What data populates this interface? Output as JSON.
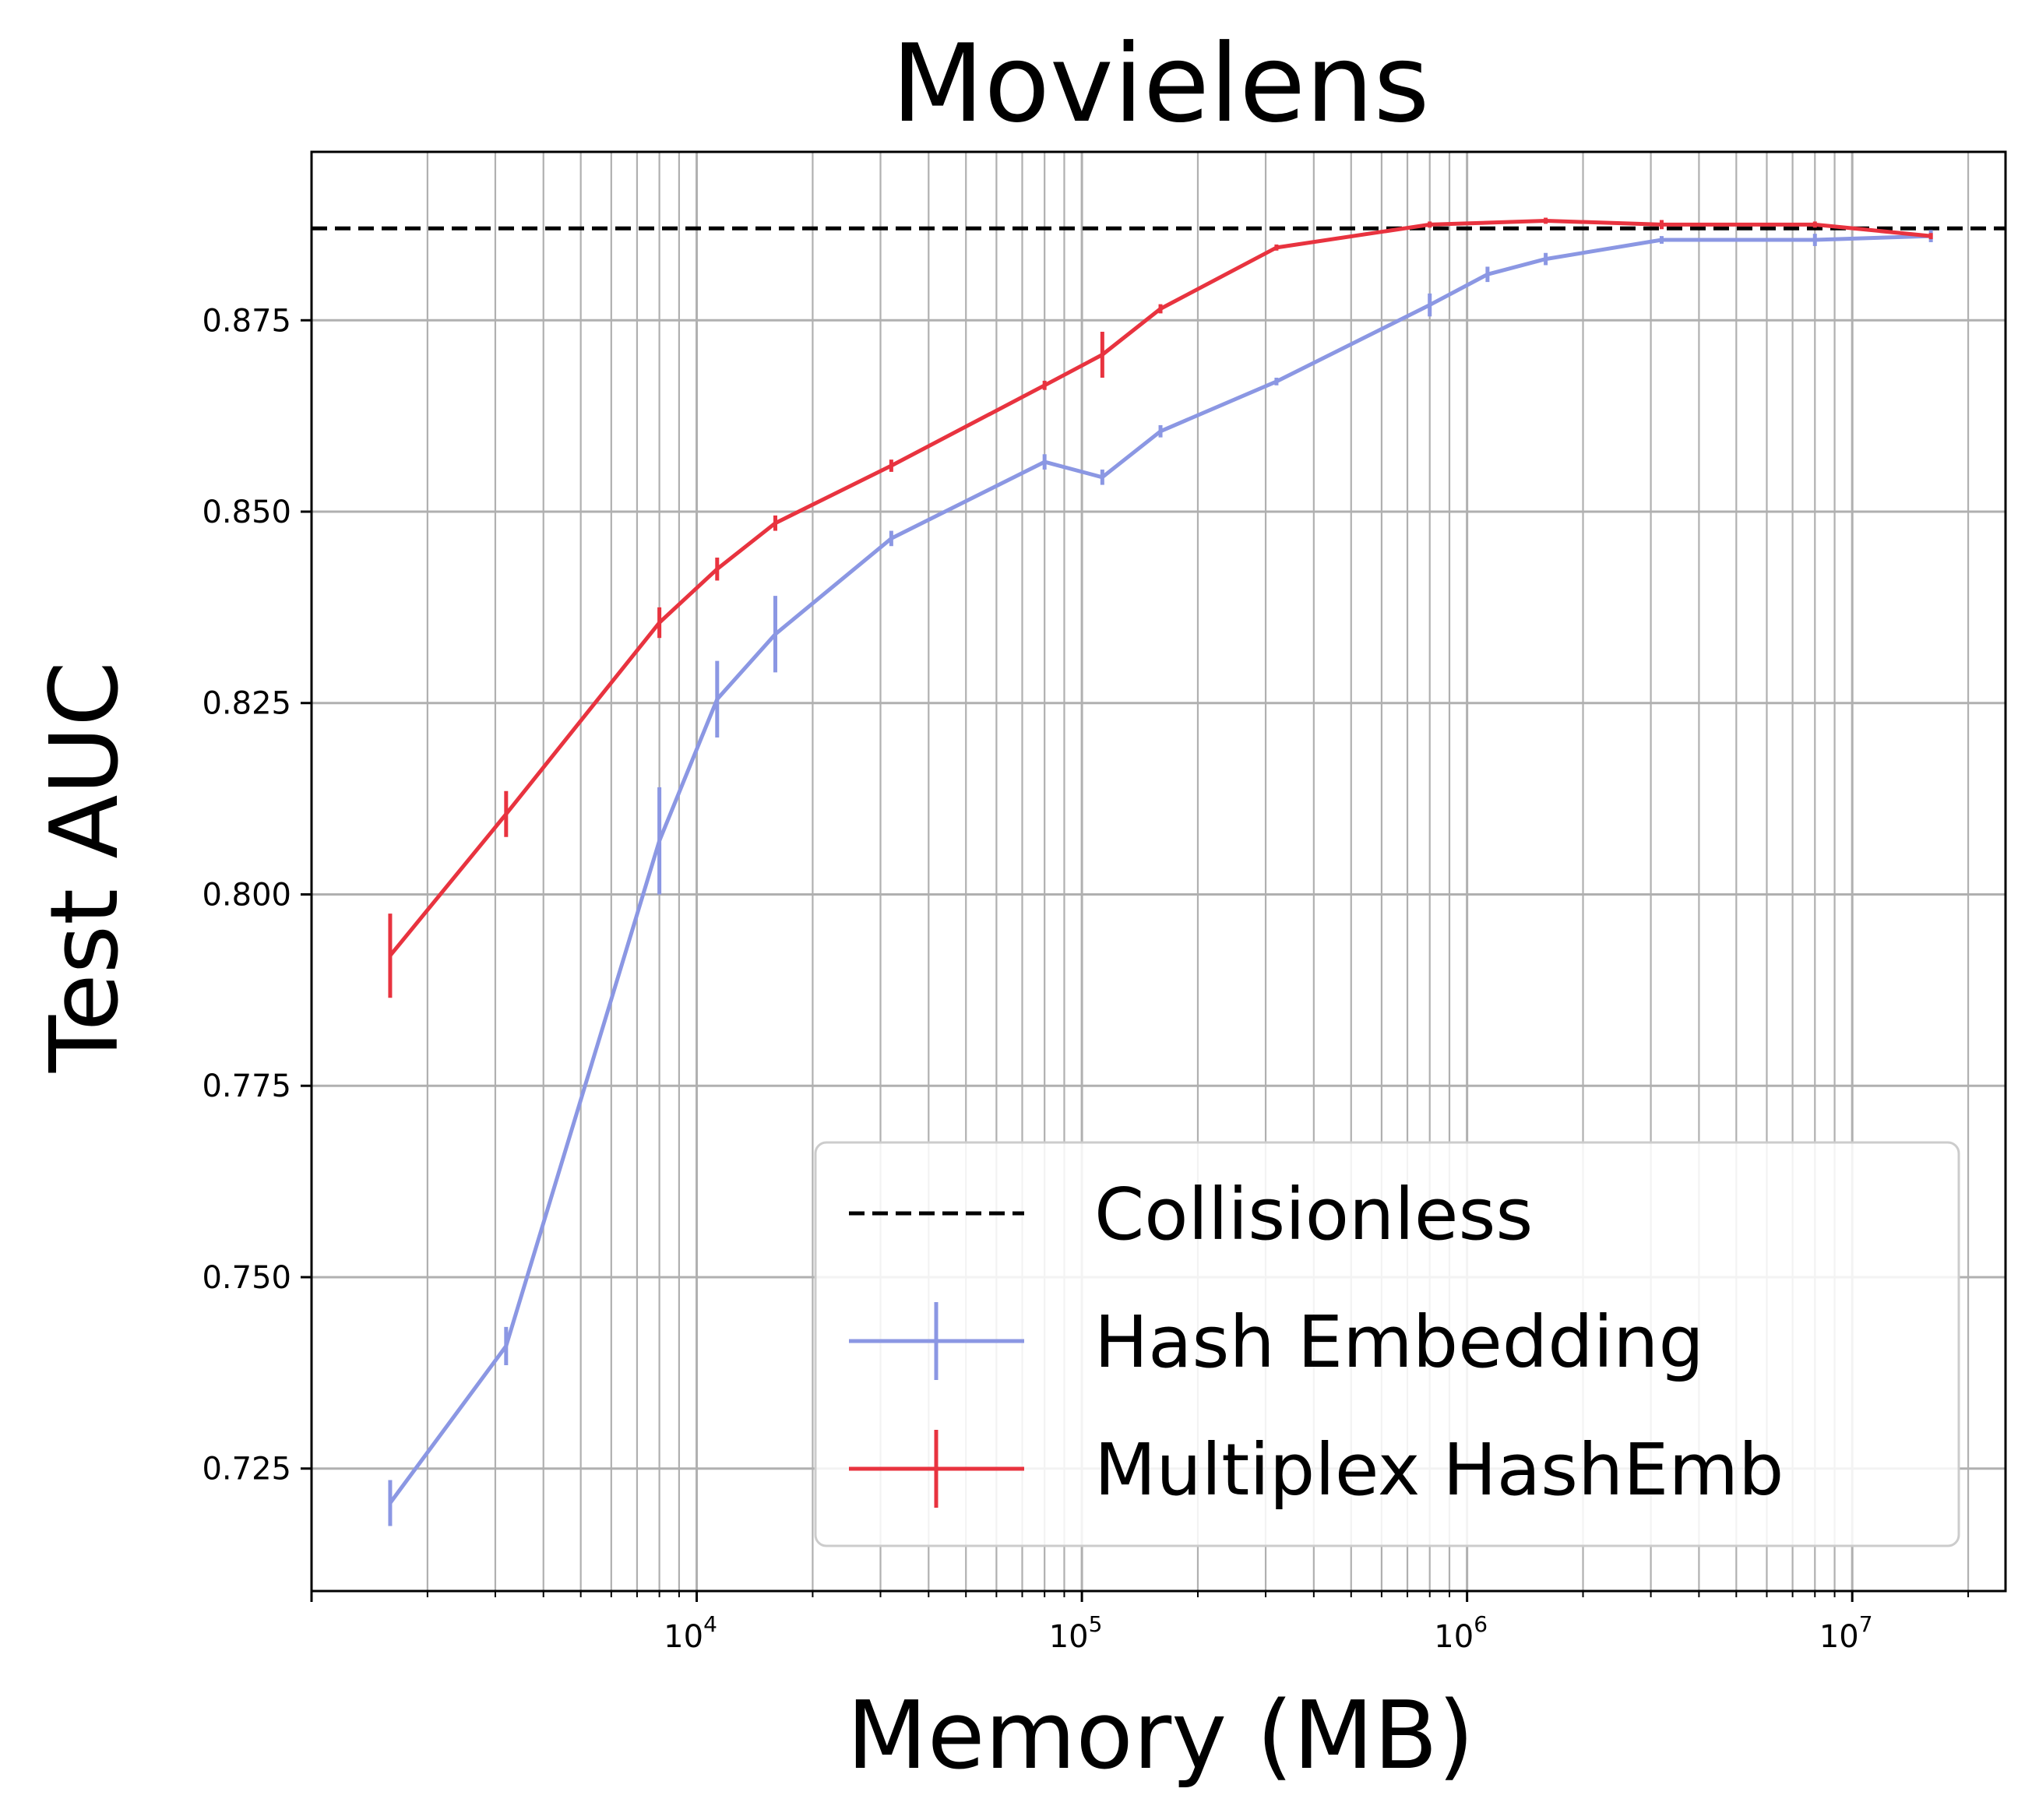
{
  "chart_data": {
    "type": "line",
    "title": "Movielens",
    "xlabel": "Memory (MB)",
    "ylabel": "Test AUC",
    "xscale": "log",
    "xlim": [
      1000,
      25000000
    ],
    "ylim": [
      0.709,
      0.897
    ],
    "yticks": [
      {
        "value": 0.725,
        "label": "0.725"
      },
      {
        "value": 0.75,
        "label": "0.750"
      },
      {
        "value": 0.775,
        "label": "0.775"
      },
      {
        "value": 0.8,
        "label": "0.800"
      },
      {
        "value": 0.825,
        "label": "0.825"
      },
      {
        "value": 0.85,
        "label": "0.850"
      },
      {
        "value": 0.875,
        "label": "0.875"
      }
    ],
    "xticks": [
      {
        "value": 10000,
        "base": "10",
        "exp": "4"
      },
      {
        "value": 100000,
        "base": "10",
        "exp": "5"
      },
      {
        "value": 1000000,
        "base": "10",
        "exp": "6"
      },
      {
        "value": 10000000,
        "base": "10",
        "exp": "7"
      }
    ],
    "grid": true,
    "legend_position": "lower-right",
    "reference_line": {
      "name": "Collisionless",
      "y": 0.887,
      "color": "#000000",
      "style": "dashed"
    },
    "series": [
      {
        "name": "Hash Embedding",
        "color": "#8b97e3",
        "x": [
          1600,
          3200,
          8000,
          11300,
          16000,
          32000,
          80000,
          113000,
          160000,
          320000,
          800000,
          1130000,
          1600000,
          3200000,
          8000000,
          16000000
        ],
        "y": [
          0.7205,
          0.741,
          0.807,
          0.8255,
          0.834,
          0.8465,
          0.8565,
          0.8545,
          0.8605,
          0.867,
          0.877,
          0.881,
          0.883,
          0.8855,
          0.8855,
          0.886
        ],
        "err": [
          0.003,
          0.0025,
          0.007,
          0.005,
          0.005,
          0.001,
          0.001,
          0.001,
          0.0008,
          0.0005,
          0.0015,
          0.001,
          0.0008,
          0.0005,
          0.0008,
          0.0008
        ]
      },
      {
        "name": "Multiplex HashEmb",
        "color": "#e8333f",
        "x": [
          1600,
          3200,
          8000,
          11300,
          16000,
          32000,
          80000,
          113000,
          160000,
          320000,
          800000,
          1600000,
          3200000,
          8000000,
          16000000
        ],
        "y": [
          0.792,
          0.8105,
          0.8355,
          0.8425,
          0.8485,
          0.856,
          0.8665,
          0.8705,
          0.8765,
          0.8845,
          0.8875,
          0.888,
          0.8875,
          0.8875,
          0.886
        ],
        "err": [
          0.0055,
          0.003,
          0.002,
          0.0015,
          0.001,
          0.0008,
          0.0006,
          0.003,
          0.0006,
          0.0004,
          0.0004,
          0.0004,
          0.0006,
          0.0004,
          0.0004
        ]
      }
    ]
  }
}
